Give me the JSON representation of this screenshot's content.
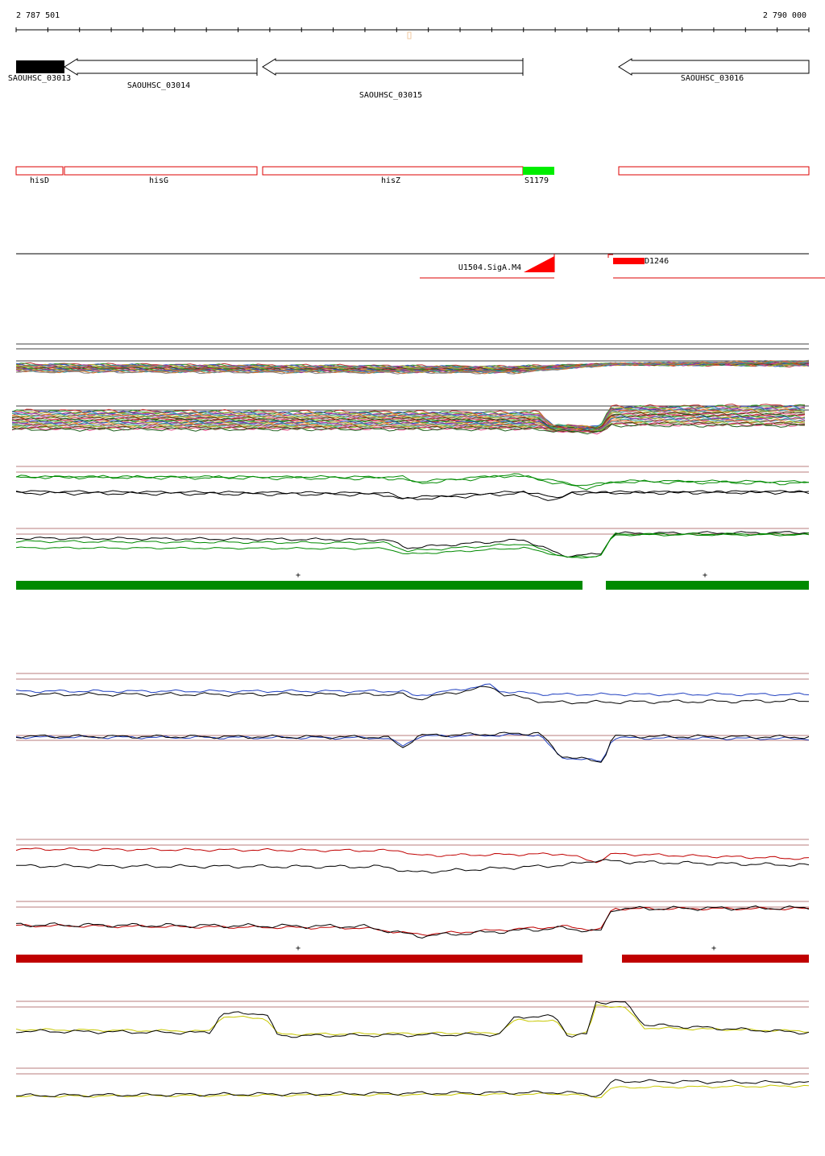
{
  "ruler": {
    "start_label": "2 787 501",
    "end_label": "2 790 000"
  },
  "genes": [
    {
      "label": "SAOUHSC_03013"
    },
    {
      "label": "SAOUHSC_03014"
    },
    {
      "label": "SAOUHSC_03015"
    },
    {
      "label": "SAOUHSC_03016"
    }
  ],
  "annotations": [
    {
      "label": "hisD"
    },
    {
      "label": "hisG"
    },
    {
      "label": "hisZ"
    },
    {
      "label": "S1179"
    }
  ],
  "features": [
    {
      "label": "U1504.SigA.M4"
    },
    {
      "label": "D1246"
    }
  ],
  "strand_bars": [
    {
      "labels": [
        "+",
        "+"
      ]
    },
    {
      "labels": [
        "+",
        "+"
      ]
    }
  ]
}
